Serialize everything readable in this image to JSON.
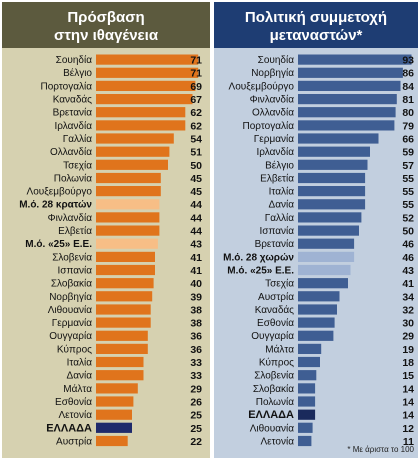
{
  "colors": {
    "left_header": "#5c5a3e",
    "left_panel": "#d6d1b0",
    "left_bar": "#e0741c",
    "left_bar_highlight": "#f7be86",
    "left_bar_greece": "#1f2a6b",
    "right_header": "#1e3d73",
    "right_panel": "#c2cfdf",
    "right_bar": "#3f5e93",
    "right_bar_highlight": "#9fb3d3",
    "right_bar_greece": "#1a2a5c",
    "header_text": "#ffffff"
  },
  "chart_data": [
    {
      "type": "bar",
      "orientation": "horizontal",
      "title": [
        "Πρόσβαση",
        "στην ιθαγένεια"
      ],
      "xlim": [
        0,
        75
      ],
      "data_labels": true,
      "categories": [
        "Σουηδία",
        "Βέλγιο",
        "Πορτογαλία",
        "Καναδάς",
        "Βρετανία",
        "Ιρλανδία",
        "Γαλλία",
        "Ολλανδία",
        "Τσεχία",
        "Πολωνία",
        "Λουξεμβούργο",
        "Μ.ό. 28 κρατών",
        "Φινλανδία",
        "Ελβετία",
        "Μ.ό. «25» Ε.Ε.",
        "Σλοβενία",
        "Ισπανία",
        "Σλοβακία",
        "Νορβηγία",
        "Λιθουανία",
        "Γερμανία",
        "Ουγγαρία",
        "Κύπρος",
        "Ιταλία",
        "Δανία",
        "Μάλτα",
        "Εσθονία",
        "Λετονία",
        "ΕΛΛΑΔΑ",
        "Αυστρία"
      ],
      "values": [
        71,
        71,
        69,
        67,
        62,
        62,
        54,
        51,
        50,
        45,
        45,
        44,
        44,
        44,
        43,
        41,
        41,
        40,
        39,
        38,
        38,
        36,
        36,
        33,
        33,
        29,
        26,
        25,
        25,
        22
      ],
      "highlighted": [
        "Μ.ό. 28 κρατών",
        "Μ.ό. «25» Ε.Ε."
      ],
      "emphasized": [
        "ΕΛΛΑΔΑ"
      ]
    },
    {
      "type": "bar",
      "orientation": "horizontal",
      "title": [
        "Πολιτική συμμετοχή",
        "μεταναστών*"
      ],
      "xlim": [
        0,
        100
      ],
      "data_labels": true,
      "categories": [
        "Σουηδία",
        "Νορβηγία",
        "Λουξεμβούργο",
        "Φινλανδία",
        "Ολλανδία",
        "Πορτογαλία",
        "Γερμανία",
        "Ιρλανδία",
        "Βέλγιο",
        "Ελβετία",
        "Ιταλία",
        "Δανία",
        "Γαλλία",
        "Ισπανία",
        "Βρετανία",
        "Μ.ό. 28 χωρών",
        "Μ.ό. «25» Ε.Ε.",
        "Τσεχία",
        "Αυστρία",
        "Καναδάς",
        "Εσθονία",
        "Ουγγαρία",
        "Μάλτα",
        "Κύπρος",
        "Σλοβενία",
        "Σλοβακία",
        "Πολωνία",
        "ΕΛΛΑΔΑ",
        "Λιθουανία",
        "Λετονία"
      ],
      "values": [
        93,
        86,
        84,
        81,
        80,
        79,
        66,
        59,
        57,
        55,
        55,
        55,
        52,
        50,
        46,
        46,
        43,
        41,
        34,
        32,
        30,
        29,
        19,
        18,
        15,
        14,
        14,
        14,
        12,
        11
      ],
      "highlighted": [
        "Μ.ό. 28 χωρών",
        "Μ.ό. «25» Ε.Ε."
      ],
      "emphasized": [
        "ΕΛΛΑΔΑ"
      ],
      "footnote": "* Με άριστα το 100"
    }
  ]
}
